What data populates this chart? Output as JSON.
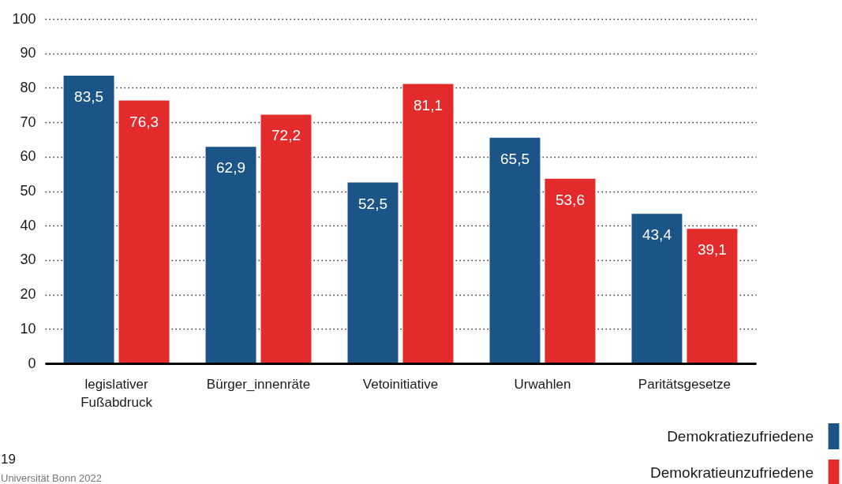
{
  "chart_data": {
    "type": "bar",
    "categories": [
      "legislativer Fußabdruck",
      "Bürger_innenräte",
      "Vetoinitiative",
      "Urwahlen",
      "Paritätsgesetze"
    ],
    "series": [
      {
        "name": "Demokratiezufriedene",
        "color": "#1b5587",
        "values": [
          83.5,
          62.9,
          52.5,
          65.5,
          43.4
        ],
        "value_labels": [
          "83,5",
          "62,9",
          "52,5",
          "65,5",
          "43,4"
        ]
      },
      {
        "name": "Demokratieunzufriedene",
        "color": "#e32b2c",
        "values": [
          76.3,
          72.2,
          81.1,
          53.6,
          39.1
        ],
        "value_labels": [
          "76,3",
          "72,2",
          "81,1",
          "53,6",
          "39,1"
        ]
      }
    ],
    "ylim": [
      0,
      100
    ],
    "yticks": [
      0,
      10,
      20,
      30,
      40,
      50,
      60,
      70,
      80,
      90,
      100
    ],
    "grid": "y",
    "legend": "bottom right",
    "annotations": [
      "19",
      "Universität Bonn 2022"
    ]
  }
}
